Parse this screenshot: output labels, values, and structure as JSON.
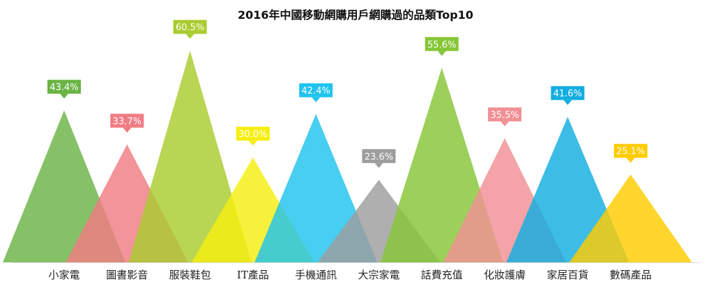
{
  "chart_data": {
    "type": "bar",
    "title": "2016年中國移動網購用戶網購過的品類Top10",
    "categories": [
      "小家電",
      "圖書影音",
      "服裝鞋包",
      "IT產品",
      "手機通訊",
      "大宗家電",
      "話費充值",
      "化妝護膚",
      "家居百貨",
      "數碼產品"
    ],
    "values": [
      43.4,
      33.7,
      60.5,
      30.0,
      42.4,
      23.6,
      55.6,
      35.5,
      41.6,
      25.1
    ],
    "value_labels": [
      "43.4%",
      "33.7%",
      "60.5%",
      "30.0%",
      "42.4%",
      "23.6%",
      "55.6%",
      "35.5%",
      "41.6%",
      "25.1%"
    ],
    "colors": [
      "#6ab445",
      "#f07c84",
      "#a9cc2e",
      "#f6ee10",
      "#1fc3ee",
      "#9d9d9d",
      "#86c637",
      "#f19095",
      "#12ade0",
      "#ffcc00"
    ],
    "unit": "%",
    "ylim": [
      0,
      65
    ],
    "grid": false,
    "legend": "none",
    "xlabel": "",
    "ylabel": ""
  }
}
